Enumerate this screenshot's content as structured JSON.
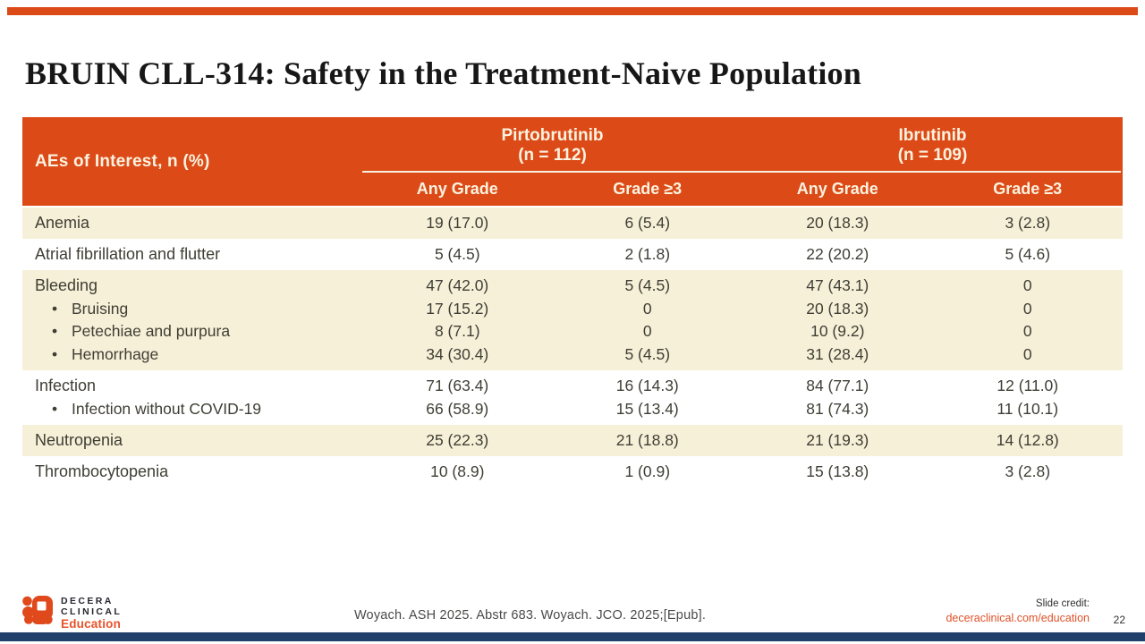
{
  "page": {
    "title": "BRUIN CLL-314: Safety in the Treatment-Naive Population"
  },
  "theme": {
    "accent_orange": "#DC4A17",
    "cream_row": "#F7F0D8",
    "header_text_cream": "#FBF3E0",
    "body_text": "#3F3E35",
    "navy_bar": "#20406B",
    "link_orange": "#E05228"
  },
  "table": {
    "corner_header": "AEs of Interest, n (%)",
    "groups": [
      {
        "name": "Pirtobrutinib",
        "n_label": "(n = 112)"
      },
      {
        "name": "Ibrutinib",
        "n_label": "(n = 109)"
      }
    ],
    "sub_headers": [
      "Any Grade",
      "Grade ≥3",
      "Any Grade",
      "Grade ≥3"
    ],
    "rows": [
      {
        "shade": "cream",
        "lines": [
          {
            "label": "Anemia",
            "bullet": false,
            "values": [
              "19 (17.0)",
              "6 (5.4)",
              "20 (18.3)",
              "3 (2.8)"
            ]
          }
        ]
      },
      {
        "shade": "white",
        "lines": [
          {
            "label": "Atrial fibrillation and flutter",
            "bullet": false,
            "values": [
              "5 (4.5)",
              "2 (1.8)",
              "22 (20.2)",
              "5 (4.6)"
            ]
          }
        ]
      },
      {
        "shade": "cream",
        "lines": [
          {
            "label": "Bleeding",
            "bullet": false,
            "values": [
              "47 (42.0)",
              "5 (4.5)",
              "47 (43.1)",
              "0"
            ]
          },
          {
            "label": "Bruising",
            "bullet": true,
            "values": [
              "17 (15.2)",
              "0",
              "20 (18.3)",
              "0"
            ]
          },
          {
            "label": "Petechiae and purpura",
            "bullet": true,
            "values": [
              "8 (7.1)",
              "0",
              "10 (9.2)",
              "0"
            ]
          },
          {
            "label": "Hemorrhage",
            "bullet": true,
            "values": [
              "34 (30.4)",
              "5 (4.5)",
              "31 (28.4)",
              "0"
            ]
          }
        ]
      },
      {
        "shade": "white",
        "lines": [
          {
            "label": "Infection",
            "bullet": false,
            "values": [
              "71 (63.4)",
              "16 (14.3)",
              "84 (77.1)",
              "12 (11.0)"
            ]
          },
          {
            "label": "Infection without COVID-19",
            "bullet": true,
            "values": [
              "66 (58.9)",
              "15 (13.4)",
              "81 (74.3)",
              "11 (10.1)"
            ]
          }
        ]
      },
      {
        "shade": "cream",
        "lines": [
          {
            "label": "Neutropenia",
            "bullet": false,
            "values": [
              "25 (22.3)",
              "21 (18.8)",
              "21 (19.3)",
              "14 (12.8)"
            ]
          }
        ]
      },
      {
        "shade": "white",
        "lines": [
          {
            "label": "Thrombocytopenia",
            "bullet": false,
            "values": [
              "10 (8.9)",
              "1 (0.9)",
              "15 (13.8)",
              "3 (2.8)"
            ]
          }
        ]
      }
    ]
  },
  "footer": {
    "logo": {
      "line1": "DECERA",
      "line2": "CLINICAL",
      "line3": "Education"
    },
    "citation": "Woyach. ASH 2025. Abstr 683. Woyach. JCO. 2025;[Epub].",
    "slide_credit_label": "Slide credit:",
    "slide_credit_link": "deceraclinical.com/education",
    "page_number": "22"
  }
}
